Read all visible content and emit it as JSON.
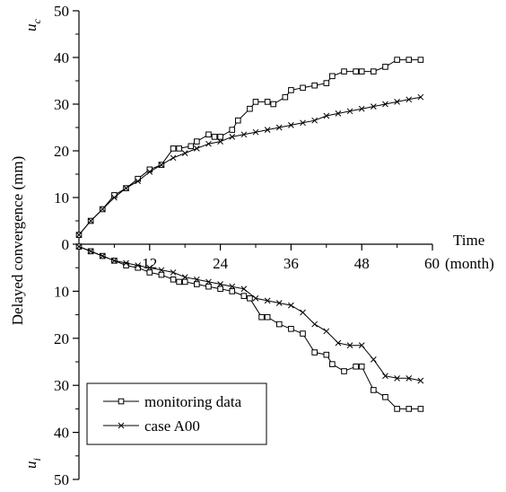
{
  "chart_data": {
    "type": "line",
    "ylabel": "Delayed convergence (mm)",
    "ylabel_top": "u_c",
    "ylabel_bottom": "u_i",
    "xlabel": "Time",
    "x_unit": "(month)",
    "x_ticks": [
      "12",
      "24",
      "36",
      "48",
      "60"
    ],
    "y_ticks_top": [
      "50",
      "40",
      "30",
      "20",
      "10",
      "0"
    ],
    "y_ticks_bottom": [
      "10",
      "20",
      "30",
      "40",
      "50"
    ],
    "xlim": [
      0,
      60
    ],
    "ylim_top": [
      0,
      50
    ],
    "ylim_bottom": [
      0,
      50
    ],
    "grid": false,
    "legend_position": "bottom-left",
    "legend": [
      {
        "name": "monitoring data",
        "marker": "square"
      },
      {
        "name": "case A00",
        "marker": "x"
      }
    ],
    "series": [
      {
        "name": "monitoring data",
        "marker": "square",
        "panel": "top",
        "x": [
          0,
          2,
          4,
          6,
          8,
          10,
          12,
          14,
          16,
          17,
          19,
          20,
          22,
          23,
          24,
          26,
          27,
          29,
          30,
          32,
          33,
          35,
          36,
          38,
          40,
          42,
          43,
          45,
          47,
          48,
          50,
          52,
          54,
          56,
          58
        ],
        "y": [
          2,
          5,
          7.5,
          10.5,
          12,
          14,
          16,
          17,
          20.5,
          20.5,
          21,
          22,
          23.5,
          23,
          23,
          24.5,
          26.5,
          29,
          30.5,
          30.5,
          30,
          31.5,
          33,
          33.5,
          34,
          34.5,
          36,
          37,
          37,
          37,
          37,
          38,
          39.5,
          39.5,
          39.5
        ]
      },
      {
        "name": "case A00",
        "marker": "x",
        "panel": "top",
        "x": [
          0,
          2,
          4,
          6,
          8,
          10,
          12,
          14,
          16,
          18,
          20,
          22,
          24,
          26,
          28,
          30,
          32,
          34,
          36,
          38,
          40,
          42,
          44,
          46,
          48,
          50,
          52,
          54,
          56,
          58
        ],
        "y": [
          2,
          5,
          7.5,
          10,
          12,
          13.5,
          15.5,
          17,
          18.5,
          19.5,
          20.5,
          21.5,
          22,
          23,
          23.5,
          24,
          24.5,
          25,
          25.5,
          26,
          26.5,
          27.5,
          28,
          28.5,
          29,
          29.5,
          30,
          30.5,
          31,
          31.5
        ]
      },
      {
        "name": "monitoring data",
        "marker": "square",
        "panel": "bottom",
        "x": [
          0,
          2,
          4,
          6,
          8,
          10,
          12,
          14,
          16,
          17,
          18,
          20,
          22,
          24,
          26,
          28,
          29,
          31,
          32,
          34,
          36,
          38,
          40,
          42,
          43,
          45,
          47,
          48,
          50,
          52,
          54,
          56,
          58
        ],
        "y": [
          0.5,
          1.5,
          2.5,
          3.5,
          4.5,
          5,
          6,
          6.5,
          7.5,
          8,
          8,
          8.5,
          9,
          9.5,
          10,
          11,
          11.5,
          15.5,
          15.5,
          17,
          18,
          19,
          23,
          23.5,
          25.5,
          27,
          26,
          26,
          31,
          32.5,
          35,
          35,
          35
        ]
      },
      {
        "name": "case A00",
        "marker": "x",
        "panel": "bottom",
        "x": [
          0,
          2,
          4,
          6,
          8,
          10,
          12,
          14,
          16,
          18,
          20,
          22,
          24,
          26,
          28,
          30,
          32,
          34,
          36,
          38,
          40,
          42,
          44,
          46,
          48,
          50,
          52,
          54,
          56,
          58
        ],
        "y": [
          0.5,
          1.5,
          2.5,
          3.5,
          4,
          4.5,
          5,
          5.5,
          6,
          7,
          7.5,
          8,
          8.5,
          9,
          9.5,
          11.5,
          12,
          12.5,
          13,
          14.5,
          17,
          18.5,
          21,
          21.5,
          21.5,
          24.5,
          28,
          28.5,
          28.5,
          29
        ]
      }
    ]
  }
}
